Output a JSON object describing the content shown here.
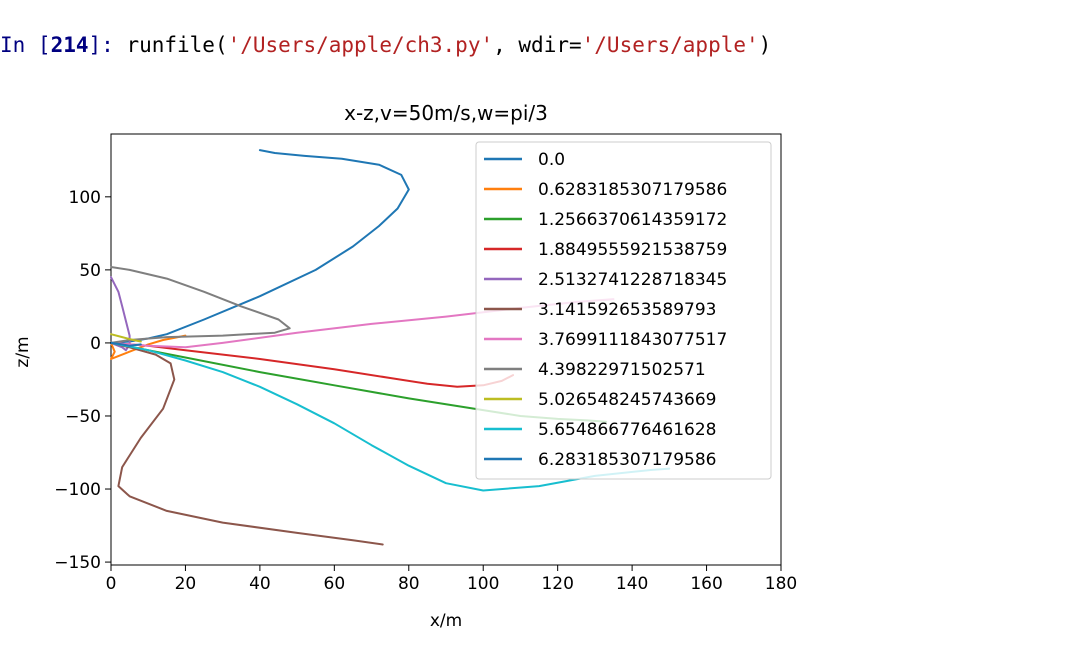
{
  "console": {
    "prompt_in": "In [",
    "prompt_number": "214",
    "prompt_close": "]: ",
    "code_fn": "runfile(",
    "code_arg1": "'/Users/apple/ch3.py'",
    "code_sep": ", wdir=",
    "code_arg2": "'/Users/apple'",
    "code_end": ")"
  },
  "chart_data": {
    "type": "line",
    "title": "x-z,v=50m/s,w=pi/3",
    "xlabel": "x/m",
    "ylabel": "z/m",
    "xlim": [
      0,
      180
    ],
    "ylim": [
      -152,
      143
    ],
    "xticks": [
      0,
      20,
      40,
      60,
      80,
      100,
      120,
      140,
      160,
      180
    ],
    "yticks": [
      -150,
      -100,
      -50,
      0,
      50,
      100
    ],
    "grid": false,
    "legend": "top-right",
    "series": [
      {
        "name": "0.0",
        "color": "#1f77b4",
        "points": [
          [
            0,
            0
          ],
          [
            5,
            1
          ],
          [
            10,
            3
          ],
          [
            15,
            6
          ],
          [
            25,
            16
          ],
          [
            40,
            32
          ],
          [
            55,
            50
          ],
          [
            65,
            66
          ],
          [
            72,
            80
          ],
          [
            77,
            92
          ],
          [
            80,
            105
          ],
          [
            78,
            115
          ],
          [
            72,
            122
          ],
          [
            62,
            126
          ],
          [
            52,
            128
          ],
          [
            44,
            130
          ],
          [
            40,
            132
          ]
        ]
      },
      {
        "name": "0.6283185307179586",
        "color": "#ff7f0e",
        "points": [
          [
            0,
            0
          ],
          [
            1,
            -6
          ],
          [
            0,
            -11
          ],
          [
            2,
            -9
          ],
          [
            6,
            -5
          ],
          [
            10,
            -1
          ],
          [
            14,
            2
          ],
          [
            18,
            4
          ],
          [
            20,
            5
          ]
        ]
      },
      {
        "name": "1.2566370614359172",
        "color": "#2ca02c",
        "points": [
          [
            0,
            0
          ],
          [
            10,
            -5
          ],
          [
            20,
            -10
          ],
          [
            40,
            -20
          ],
          [
            60,
            -29
          ],
          [
            80,
            -38
          ],
          [
            100,
            -46
          ],
          [
            110,
            -50
          ],
          [
            120,
            -52
          ],
          [
            128,
            -53
          ],
          [
            133,
            -54
          ]
        ]
      },
      {
        "name": "1.8849555921538759",
        "color": "#d62728",
        "points": [
          [
            0,
            0
          ],
          [
            10,
            -2
          ],
          [
            20,
            -5
          ],
          [
            40,
            -11
          ],
          [
            60,
            -18
          ],
          [
            75,
            -24
          ],
          [
            85,
            -28
          ],
          [
            93,
            -30
          ],
          [
            100,
            -29
          ],
          [
            105,
            -26
          ],
          [
            108,
            -22
          ]
        ]
      },
      {
        "name": "2.5132741228718345",
        "color": "#9467bd",
        "points": [
          [
            0,
            0
          ],
          [
            3,
            -3
          ],
          [
            4,
            -5
          ],
          [
            5,
            -1
          ],
          [
            5,
            5
          ],
          [
            4,
            15
          ],
          [
            3,
            25
          ],
          [
            2,
            35
          ],
          [
            0,
            45
          ]
        ]
      },
      {
        "name": "3.141592653589793",
        "color": "#8c564b",
        "points": [
          [
            0,
            0
          ],
          [
            5,
            -3
          ],
          [
            12,
            -8
          ],
          [
            16,
            -14
          ],
          [
            17,
            -25
          ],
          [
            14,
            -45
          ],
          [
            8,
            -65
          ],
          [
            3,
            -85
          ],
          [
            2,
            -98
          ],
          [
            5,
            -105
          ],
          [
            15,
            -115
          ],
          [
            30,
            -123
          ],
          [
            50,
            -130
          ],
          [
            65,
            -135
          ],
          [
            73,
            -138
          ]
        ]
      },
      {
        "name": "3.7699111843077517",
        "color": "#e377c2",
        "points": [
          [
            0,
            0
          ],
          [
            10,
            -2
          ],
          [
            20,
            -3
          ],
          [
            30,
            0
          ],
          [
            50,
            7
          ],
          [
            70,
            13
          ],
          [
            90,
            18
          ],
          [
            110,
            24
          ],
          [
            125,
            28
          ],
          [
            135,
            30
          ]
        ]
      },
      {
        "name": "4.39822971502571",
        "color": "#7f7f7f",
        "points": [
          [
            0,
            52
          ],
          [
            5,
            50
          ],
          [
            15,
            44
          ],
          [
            25,
            35
          ],
          [
            35,
            25
          ],
          [
            45,
            16
          ],
          [
            48,
            10
          ],
          [
            44,
            7
          ],
          [
            30,
            5
          ],
          [
            15,
            4
          ],
          [
            5,
            2
          ],
          [
            0,
            0
          ]
        ]
      },
      {
        "name": "5.026548245743669",
        "color": "#bcbd22",
        "points": [
          [
            0,
            6
          ],
          [
            3,
            4
          ],
          [
            6,
            2
          ],
          [
            8,
            1
          ]
        ]
      },
      {
        "name": "5.654866776461628",
        "color": "#17becf",
        "points": [
          [
            0,
            0
          ],
          [
            10,
            -5
          ],
          [
            20,
            -12
          ],
          [
            30,
            -20
          ],
          [
            40,
            -30
          ],
          [
            50,
            -42
          ],
          [
            60,
            -55
          ],
          [
            70,
            -70
          ],
          [
            80,
            -84
          ],
          [
            90,
            -96
          ],
          [
            100,
            -101
          ],
          [
            115,
            -98
          ],
          [
            130,
            -91
          ],
          [
            145,
            -87
          ],
          [
            150,
            -86
          ]
        ]
      },
      {
        "name": "6.283185307179586",
        "color": "#1f77b4",
        "points": [
          [
            0,
            0
          ],
          [
            3,
            -1
          ],
          [
            5,
            -2
          ],
          [
            8,
            -1
          ]
        ]
      }
    ]
  }
}
